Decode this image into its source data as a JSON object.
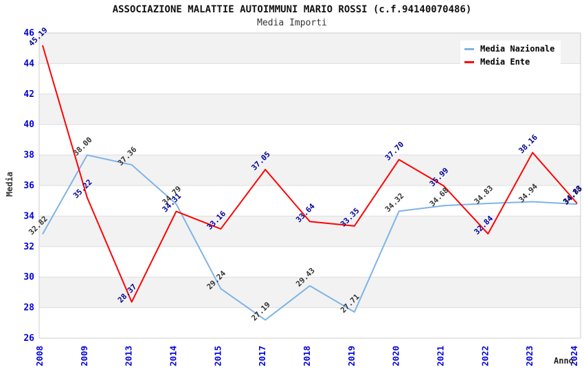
{
  "chart_data": {
    "type": "line",
    "title": "ASSOCIAZIONE MALATTIE AUTOIMMUNI MARIO ROSSI (c.f.94140070486)",
    "subtitle": "Media Importi",
    "xlabel": "Anno",
    "ylabel": "Media",
    "categories": [
      "2008",
      "2009",
      "2013",
      "2014",
      "2015",
      "2017",
      "2018",
      "2019",
      "2020",
      "2021",
      "2022",
      "2023",
      "2024"
    ],
    "series": [
      {
        "name": "Media Nazionale",
        "color": "#7db3e8",
        "label_color": "#333333",
        "values": [
          32.82,
          38.0,
          37.36,
          34.79,
          29.24,
          27.19,
          29.43,
          27.71,
          34.32,
          34.68,
          34.83,
          34.94,
          34.78
        ]
      },
      {
        "name": "Media Ente",
        "color": "#ff0000",
        "label_color": "#000099",
        "values": [
          45.19,
          35.22,
          28.37,
          34.31,
          33.16,
          37.05,
          33.64,
          33.35,
          37.7,
          35.99,
          32.84,
          38.16,
          34.83
        ]
      }
    ],
    "ylim": [
      26,
      46
    ],
    "y_ticks": [
      26,
      28,
      30,
      32,
      34,
      36,
      38,
      40,
      42,
      44,
      46
    ],
    "legend_position": "top-right",
    "grid": "on",
    "axis_tick_color": "#0000dd",
    "grid_color": "#dddddd",
    "band_color": "#f2f2f2",
    "plot_border_color": "#cccccc"
  }
}
